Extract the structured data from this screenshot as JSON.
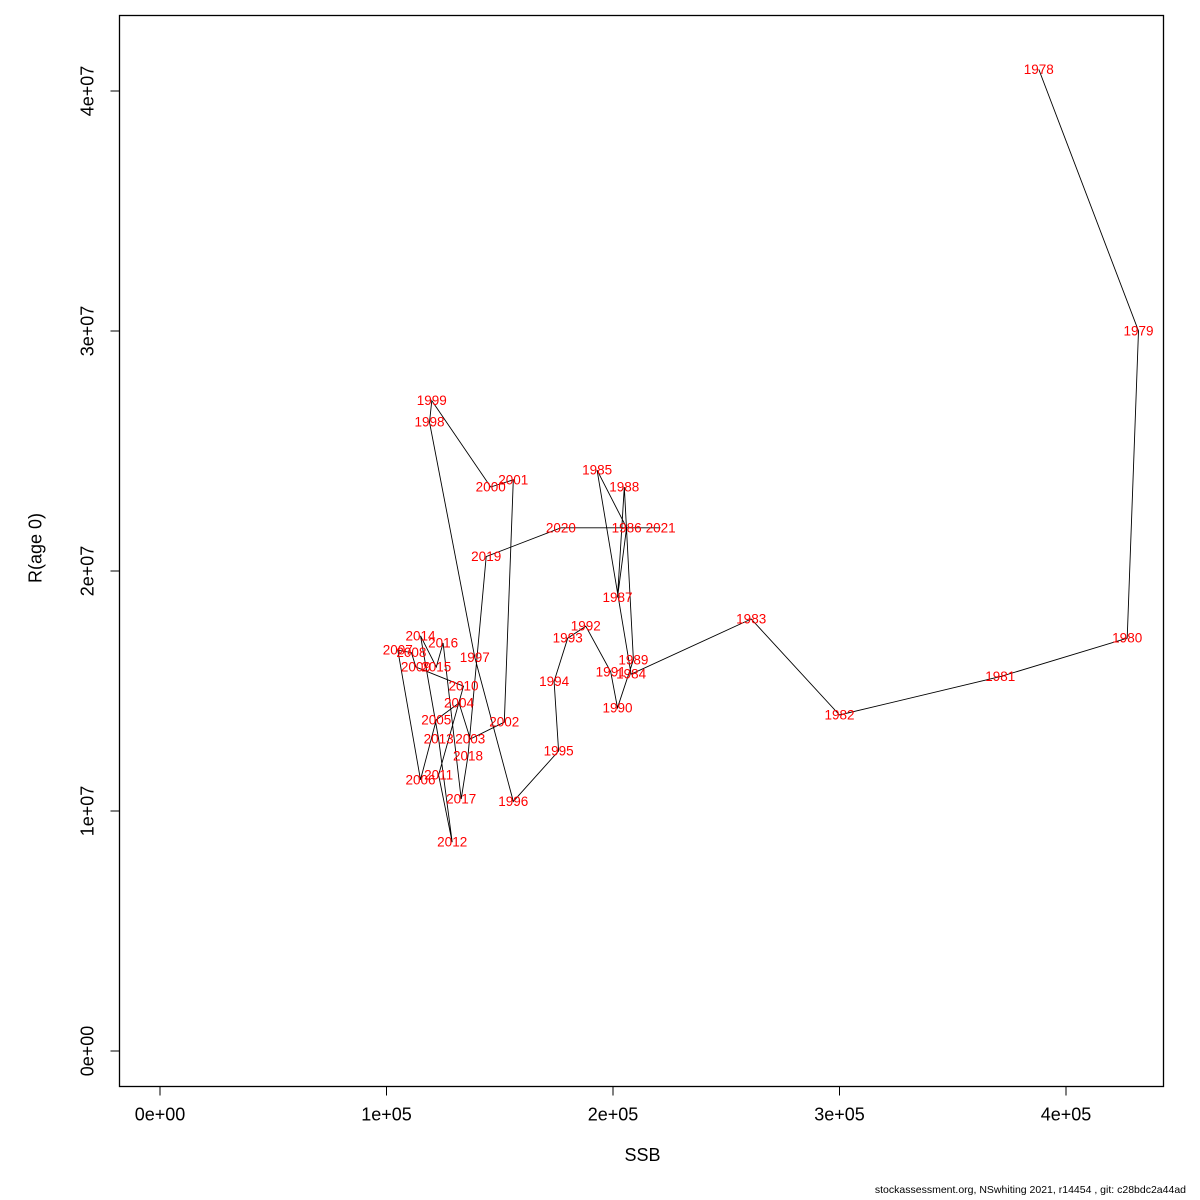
{
  "footer": {
    "credit": "stockassessment.org, NSwhiting 2021, r14454 , git: c28bdc2a44ad"
  },
  "chart_data": {
    "type": "scatter",
    "subtype": "connected-phase-plot",
    "title": "",
    "xlabel": "SSB",
    "ylabel": "R(age 0)",
    "xlim": [
      0,
      443000
    ],
    "ylim": [
      0,
      43000000
    ],
    "grid": "off",
    "legend": "none",
    "line_color": "#000000",
    "point_label_color": "#ff0000",
    "x_ticks": [
      {
        "value": 0,
        "label": "0e+00"
      },
      {
        "value": 100000,
        "label": "1e+05"
      },
      {
        "value": 200000,
        "label": "2e+05"
      },
      {
        "value": 300000,
        "label": "3e+05"
      },
      {
        "value": 400000,
        "label": "4e+05"
      }
    ],
    "y_ticks": [
      {
        "value": 0,
        "label": "0e+00"
      },
      {
        "value": 10000000,
        "label": "1e+07"
      },
      {
        "value": 20000000,
        "label": "2e+07"
      },
      {
        "value": 30000000,
        "label": "3e+07"
      },
      {
        "value": 40000000,
        "label": "4e+07"
      }
    ],
    "series": [
      {
        "name": "recruitment-vs-ssb",
        "points": [
          {
            "year": 1978,
            "ssb": 388000,
            "r": 40900000
          },
          {
            "year": 1979,
            "ssb": 432000,
            "r": 30000000
          },
          {
            "year": 1980,
            "ssb": 427000,
            "r": 17200000
          },
          {
            "year": 1981,
            "ssb": 371000,
            "r": 15600000
          },
          {
            "year": 1982,
            "ssb": 300000,
            "r": 14000000
          },
          {
            "year": 1983,
            "ssb": 261000,
            "r": 18000000
          },
          {
            "year": 1984,
            "ssb": 208000,
            "r": 15700000
          },
          {
            "year": 1985,
            "ssb": 193000,
            "r": 24200000
          },
          {
            "year": 1986,
            "ssb": 206000,
            "r": 21800000
          },
          {
            "year": 1987,
            "ssb": 202000,
            "r": 18900000
          },
          {
            "year": 1988,
            "ssb": 205000,
            "r": 23500000
          },
          {
            "year": 1989,
            "ssb": 209000,
            "r": 16300000
          },
          {
            "year": 1990,
            "ssb": 202000,
            "r": 14300000
          },
          {
            "year": 1991,
            "ssb": 199000,
            "r": 15800000
          },
          {
            "year": 1992,
            "ssb": 188000,
            "r": 17700000
          },
          {
            "year": 1993,
            "ssb": 180000,
            "r": 17200000
          },
          {
            "year": 1994,
            "ssb": 174000,
            "r": 15400000
          },
          {
            "year": 1995,
            "ssb": 176000,
            "r": 12500000
          },
          {
            "year": 1996,
            "ssb": 156000,
            "r": 10400000
          },
          {
            "year": 1997,
            "ssb": 139000,
            "r": 16400000
          },
          {
            "year": 1998,
            "ssb": 119000,
            "r": 26200000
          },
          {
            "year": 1999,
            "ssb": 120000,
            "r": 27100000
          },
          {
            "year": 2000,
            "ssb": 146000,
            "r": 23500000
          },
          {
            "year": 2001,
            "ssb": 156000,
            "r": 23800000
          },
          {
            "year": 2002,
            "ssb": 152000,
            "r": 13700000
          },
          {
            "year": 2003,
            "ssb": 137000,
            "r": 13000000
          },
          {
            "year": 2004,
            "ssb": 132000,
            "r": 14500000
          },
          {
            "year": 2005,
            "ssb": 122000,
            "r": 13800000
          },
          {
            "year": 2006,
            "ssb": 115000,
            "r": 11300000
          },
          {
            "year": 2007,
            "ssb": 105000,
            "r": 16700000
          },
          {
            "year": 2008,
            "ssb": 111000,
            "r": 16600000
          },
          {
            "year": 2009,
            "ssb": 113000,
            "r": 16000000
          },
          {
            "year": 2010,
            "ssb": 134000,
            "r": 15200000
          },
          {
            "year": 2011,
            "ssb": 123000,
            "r": 11500000
          },
          {
            "year": 2012,
            "ssb": 129000,
            "r": 8700000
          },
          {
            "year": 2013,
            "ssb": 123000,
            "r": 13000000
          },
          {
            "year": 2014,
            "ssb": 115000,
            "r": 17300000
          },
          {
            "year": 2015,
            "ssb": 122000,
            "r": 16000000
          },
          {
            "year": 2016,
            "ssb": 125000,
            "r": 17000000
          },
          {
            "year": 2017,
            "ssb": 133000,
            "r": 10500000
          },
          {
            "year": 2018,
            "ssb": 136000,
            "r": 12300000
          },
          {
            "year": 2019,
            "ssb": 144000,
            "r": 20600000
          },
          {
            "year": 2020,
            "ssb": 177000,
            "r": 21800000
          },
          {
            "year": 2021,
            "ssb": 221000,
            "r": 21800000
          }
        ]
      }
    ]
  }
}
